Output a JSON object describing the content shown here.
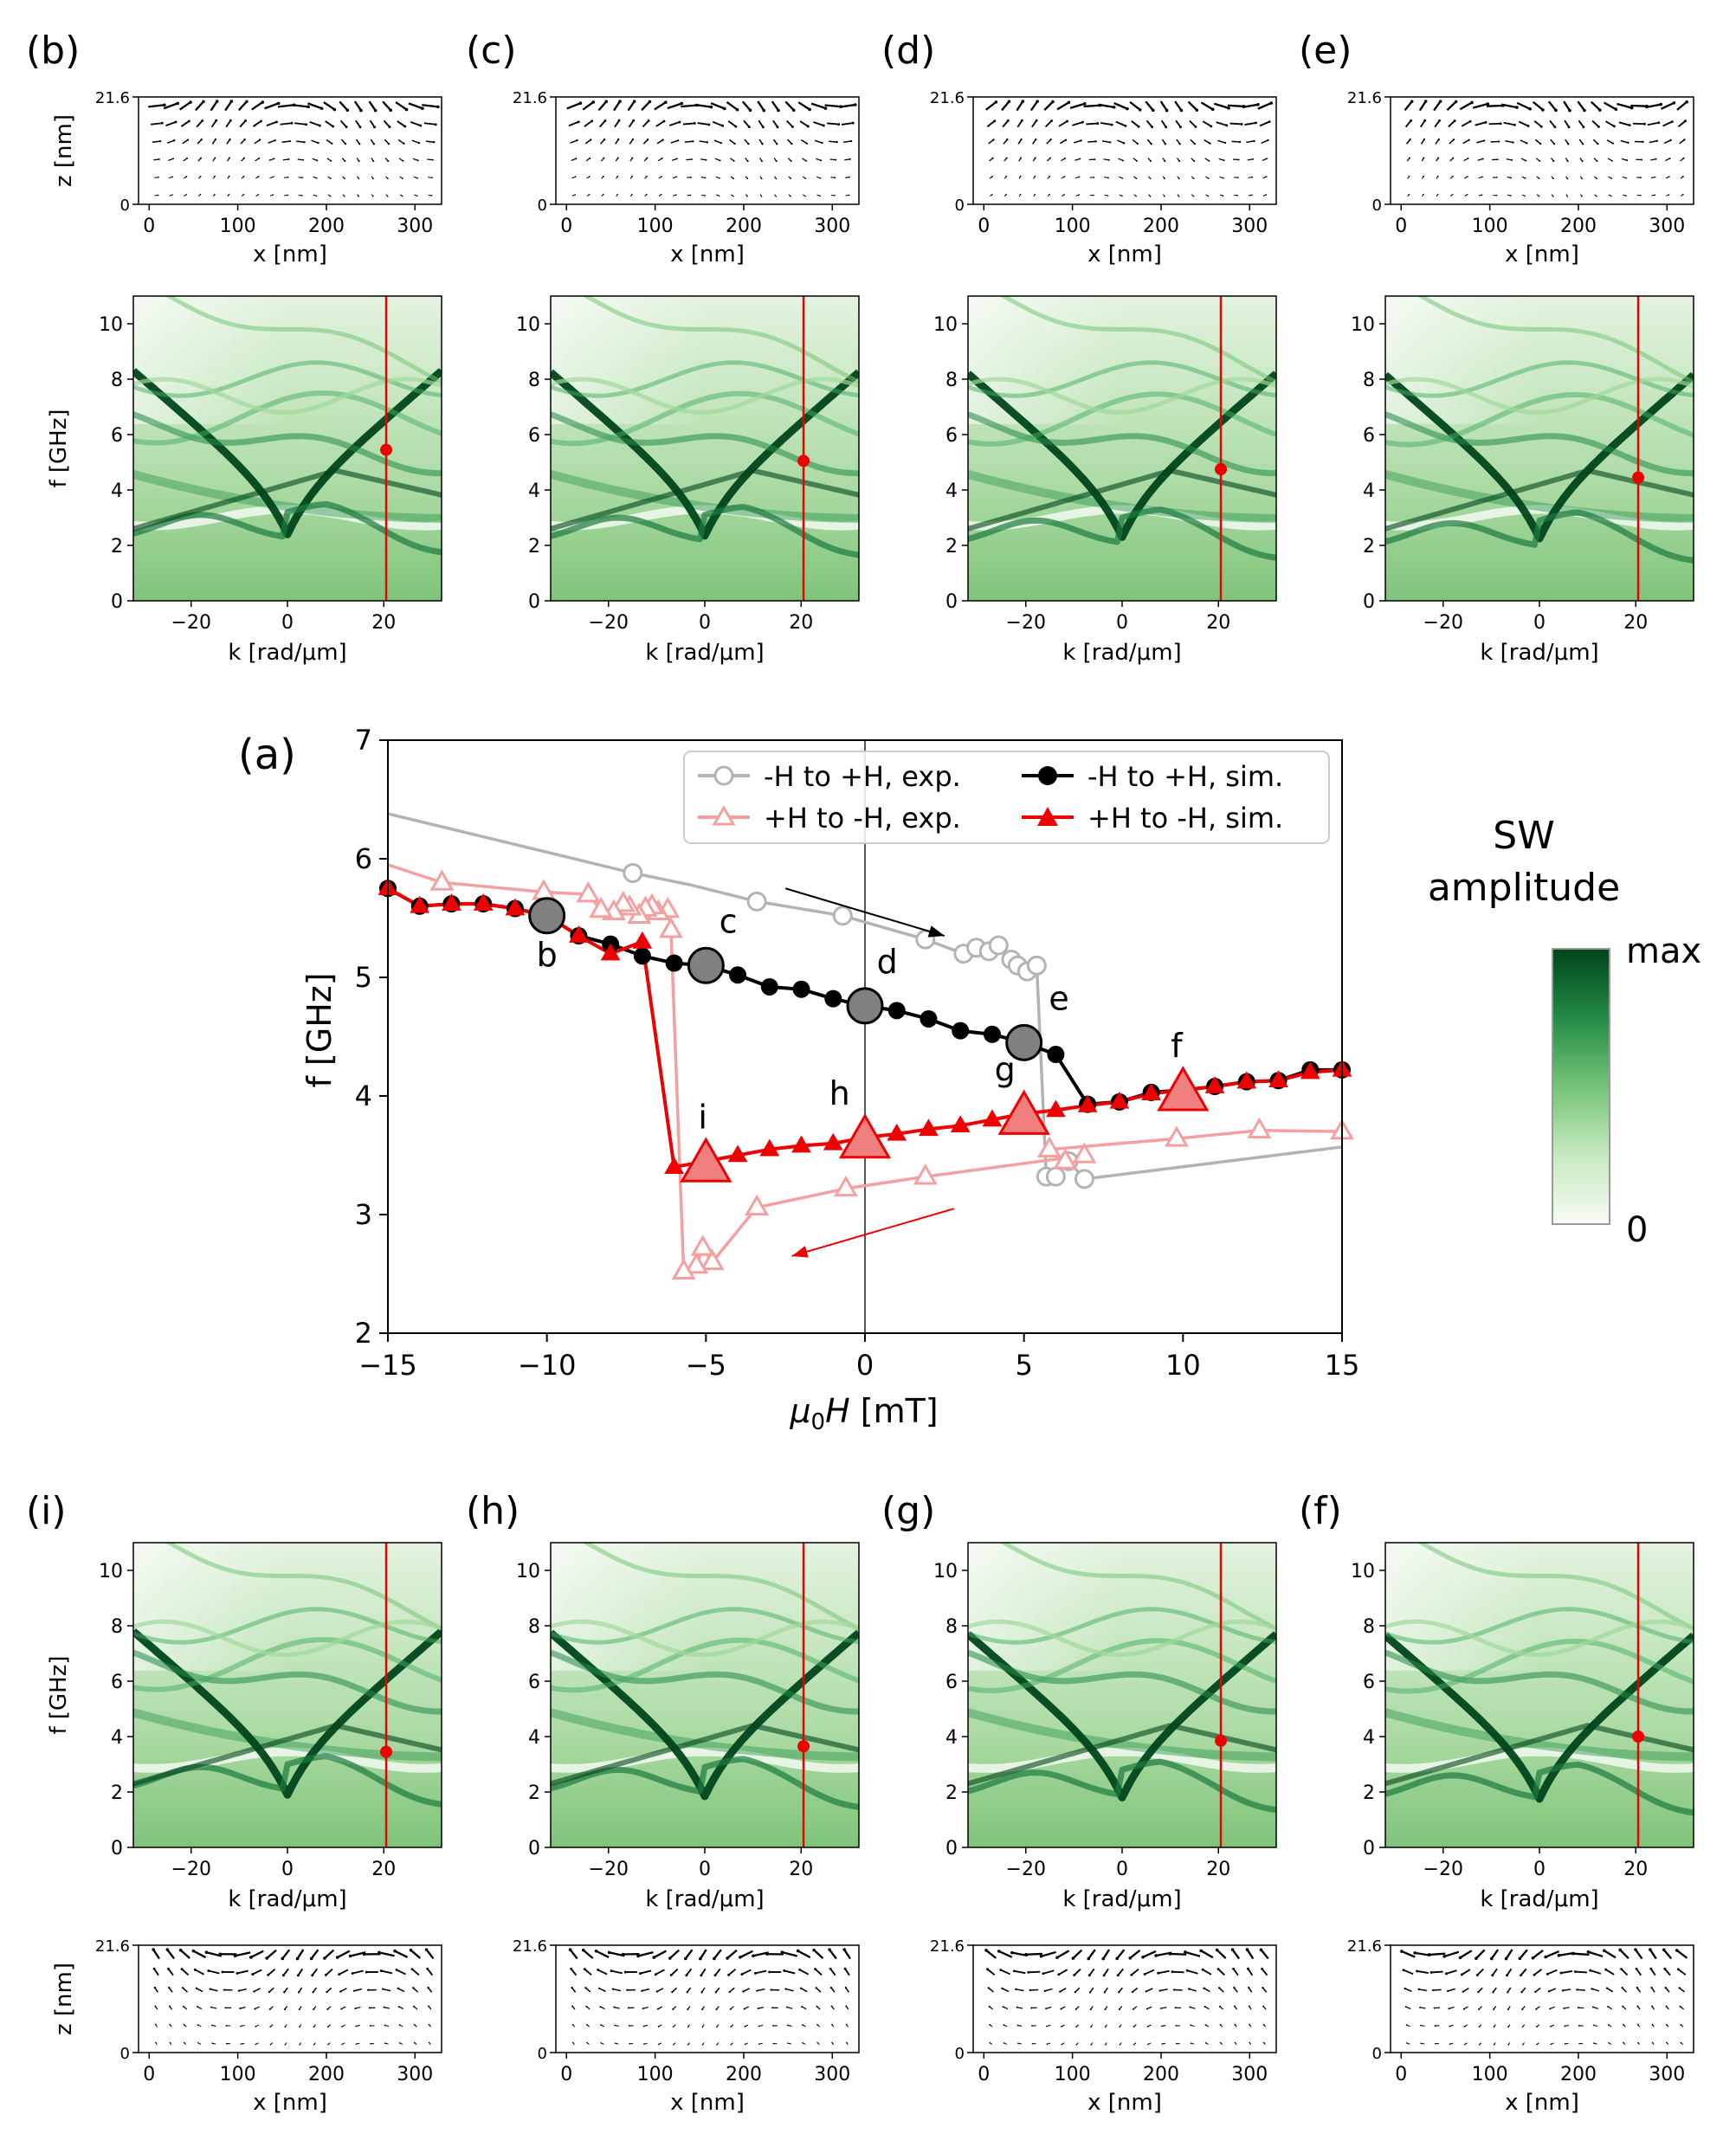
{
  "figure": {
    "colorbar": {
      "title_line1": "SW",
      "title_line2": "amplitude",
      "max_label": "max",
      "min_label": "0"
    },
    "colors": {
      "green_dark": "#00441b",
      "green_light": "#f7fcf5",
      "exp_gray": "#b3b3b3",
      "exp_pink": "#f4a0a0",
      "sim_black": "#000000",
      "sim_red": "#ee0000",
      "marker_gray": "#808080",
      "marker_pink": "#f08080"
    }
  },
  "chart_data": [
    {
      "id": "a",
      "panel_label": "(a)",
      "type": "line",
      "xlabel_main": "μ",
      "xlabel_sub": "0",
      "xlabel_var": "H",
      "xlabel_unit": " [mT]",
      "ylabel": "f [GHz]",
      "xlim": [
        -15,
        15
      ],
      "ylim": [
        2,
        7
      ],
      "xticks": [
        -15,
        -10,
        -5,
        0,
        5,
        10,
        15
      ],
      "xtick_labels": [
        "−15",
        "−10",
        "−5",
        "0",
        "5",
        "10",
        "15"
      ],
      "yticks": [
        2,
        3,
        4,
        5,
        6,
        7
      ],
      "ytick_labels": [
        "2",
        "3",
        "4",
        "5",
        "6",
        "7"
      ],
      "legend": {
        "position": "top-right",
        "entries": [
          "-H to +H, exp.",
          "+H to -H, exp.",
          "-H to +H, sim.",
          "+H to -H, sim."
        ]
      },
      "series": [
        {
          "name": "-H to +H, exp.",
          "color": "#b3b3b3",
          "marker": "circle-open",
          "x": [
            -15,
            -7.3,
            -5.5,
            -3.4,
            -0.7,
            1.9,
            3.1,
            3.5,
            3.9,
            4.2,
            4.6,
            4.8,
            5.1,
            5.4,
            5.7,
            6.0,
            6.4,
            6.9,
            15
          ],
          "y": [
            6.38,
            5.88,
            5.78,
            5.64,
            5.52,
            5.32,
            5.2,
            5.25,
            5.22,
            5.27,
            5.15,
            5.1,
            5.05,
            5.1,
            3.32,
            3.32,
            3.45,
            3.3,
            3.57
          ],
          "mark": [
            false,
            true,
            false,
            true,
            true,
            true,
            true,
            true,
            true,
            true,
            true,
            true,
            true,
            true,
            true,
            true,
            true,
            true,
            false
          ]
        },
        {
          "name": "+H to -H, exp.",
          "color": "#f4a0a0",
          "marker": "triangle-open",
          "x": [
            15,
            12.4,
            9.8,
            5.8,
            6.3,
            6.9,
            1.9,
            -0.6,
            -3.4,
            -4.8,
            -5.1,
            -5.3,
            -5.7,
            -6.1,
            -6.2,
            -6.5,
            -6.7,
            -6.9,
            -7.1,
            -7.4,
            -7.6,
            -7.9,
            -8.3,
            -8.7,
            -10.1,
            -13.3,
            -15
          ],
          "y": [
            3.7,
            3.71,
            3.64,
            3.55,
            3.45,
            3.5,
            3.32,
            3.22,
            3.06,
            2.6,
            2.72,
            2.57,
            2.52,
            5.4,
            5.57,
            5.55,
            5.6,
            5.58,
            5.52,
            5.59,
            5.62,
            5.55,
            5.57,
            5.7,
            5.72,
            5.8,
            5.95
          ],
          "mark": [
            true,
            true,
            true,
            true,
            true,
            true,
            true,
            true,
            true,
            true,
            true,
            true,
            true,
            true,
            true,
            true,
            true,
            true,
            true,
            true,
            true,
            true,
            true,
            true,
            true,
            true,
            false
          ]
        },
        {
          "name": "-H to +H, sim.",
          "color": "#000000",
          "marker": "circle-filled",
          "x": [
            -15,
            -14,
            -13,
            -12,
            -11,
            -10,
            -9,
            -8,
            -7,
            -6,
            -5,
            -4,
            -3,
            -2,
            -1,
            0,
            1,
            2,
            3,
            4,
            5,
            6,
            7,
            8,
            9,
            10,
            11,
            12,
            13,
            14,
            15
          ],
          "y": [
            5.75,
            5.6,
            5.62,
            5.62,
            5.58,
            5.52,
            5.35,
            5.28,
            5.18,
            5.12,
            5.1,
            5.02,
            4.92,
            4.9,
            4.82,
            4.76,
            4.72,
            4.65,
            4.55,
            4.52,
            4.45,
            4.35,
            3.93,
            3.95,
            4.03,
            4.05,
            4.08,
            4.12,
            4.13,
            4.22,
            4.22
          ],
          "big": [
            false,
            false,
            false,
            false,
            false,
            true,
            false,
            false,
            false,
            false,
            true,
            false,
            false,
            false,
            false,
            true,
            false,
            false,
            false,
            false,
            true,
            false,
            false,
            false,
            false,
            false,
            false,
            false,
            false,
            false,
            false
          ]
        },
        {
          "name": "+H to -H, sim.",
          "color": "#ee0000",
          "marker": "triangle-filled",
          "x": [
            15,
            14,
            13,
            12,
            11,
            10,
            9,
            8,
            7,
            6,
            5,
            4,
            3,
            2,
            1,
            0,
            -1,
            -2,
            -3,
            -4,
            -5,
            -6,
            -7,
            -8,
            -9,
            -10,
            -11,
            -12,
            -13,
            -14,
            -15
          ],
          "y": [
            4.22,
            4.2,
            4.13,
            4.12,
            4.08,
            4.05,
            4.02,
            3.95,
            3.92,
            3.88,
            3.85,
            3.8,
            3.75,
            3.72,
            3.68,
            3.65,
            3.6,
            3.58,
            3.55,
            3.5,
            3.45,
            3.4,
            5.3,
            5.2,
            5.35,
            5.52,
            5.58,
            5.62,
            5.62,
            5.6,
            5.75
          ],
          "big": [
            false,
            false,
            false,
            false,
            false,
            true,
            false,
            false,
            false,
            false,
            true,
            false,
            false,
            false,
            false,
            true,
            false,
            false,
            false,
            false,
            true,
            false,
            false,
            false,
            false,
            false,
            false,
            false,
            false,
            false,
            false
          ]
        }
      ],
      "point_labels": [
        {
          "text": "b",
          "x": -10,
          "y": 5.52,
          "dx": 0,
          "dy": 1
        },
        {
          "text": "c",
          "x": -5,
          "y": 5.1,
          "dx": 0.7,
          "dy": -1
        },
        {
          "text": "d",
          "x": 0,
          "y": 4.76,
          "dx": 0.7,
          "dy": -1
        },
        {
          "text": "e",
          "x": 5,
          "y": 4.45,
          "dx": 1.1,
          "dy": -1
        },
        {
          "text": "f",
          "x": 10,
          "y": 4.05,
          "dx": -0.2,
          "dy": -1
        },
        {
          "text": "g",
          "x": 5,
          "y": 3.85,
          "dx": -0.6,
          "dy": -1
        },
        {
          "text": "h",
          "x": 0,
          "y": 3.65,
          "dx": -0.8,
          "dy": -1
        },
        {
          "text": "i",
          "x": -5,
          "y": 3.45,
          "dx": -0.1,
          "dy": -1
        }
      ],
      "arrows": [
        {
          "from": [
            -2.5,
            5.75
          ],
          "to": [
            2.5,
            5.35
          ],
          "color": "#000000"
        },
        {
          "from": [
            2.8,
            3.05
          ],
          "to": [
            -2.3,
            2.65
          ],
          "color": "#ee0000"
        }
      ],
      "vline_x": 0
    },
    {
      "id": "b",
      "panel_label": "(b)",
      "type": "heatmap",
      "red_dot_y": 5.45
    },
    {
      "id": "c",
      "panel_label": "(c)",
      "type": "heatmap",
      "red_dot_y": 5.05
    },
    {
      "id": "d",
      "panel_label": "(d)",
      "type": "heatmap",
      "red_dot_y": 4.75
    },
    {
      "id": "e",
      "panel_label": "(e)",
      "type": "heatmap",
      "red_dot_y": 4.45
    },
    {
      "id": "i",
      "panel_label": "(i)",
      "type": "heatmap",
      "red_dot_y": 3.45
    },
    {
      "id": "h",
      "panel_label": "(h)",
      "type": "heatmap",
      "red_dot_y": 3.65
    },
    {
      "id": "g",
      "panel_label": "(g)",
      "type": "heatmap",
      "red_dot_y": 3.85
    },
    {
      "id": "f",
      "panel_label": "(f)",
      "type": "heatmap",
      "red_dot_y": 4.0
    }
  ],
  "heatmap_axes": {
    "xlabel": "k [rad/μm]",
    "ylabel": "f [GHz]",
    "xlim": [
      -32,
      32
    ],
    "ylim": [
      0,
      11
    ],
    "xticks": [
      -20,
      0,
      20
    ],
    "xtick_labels": [
      "−20",
      "0",
      "20"
    ],
    "yticks": [
      0,
      2,
      4,
      6,
      8,
      10
    ],
    "ytick_labels": [
      "0",
      "2",
      "4",
      "6",
      "8",
      "10"
    ],
    "red_line_k": 20.5
  },
  "field_axes": {
    "xlabel": "x [nm]",
    "ylabel": "z [nm]",
    "xlim": [
      -12,
      330
    ],
    "ylim": [
      0,
      21.6
    ],
    "xticks": [
      0,
      100,
      200,
      300
    ],
    "xtick_labels": [
      "0",
      "100",
      "200",
      "300"
    ],
    "yticks": [
      0,
      21.6
    ],
    "ytick_labels": [
      "0",
      "21.6"
    ]
  }
}
